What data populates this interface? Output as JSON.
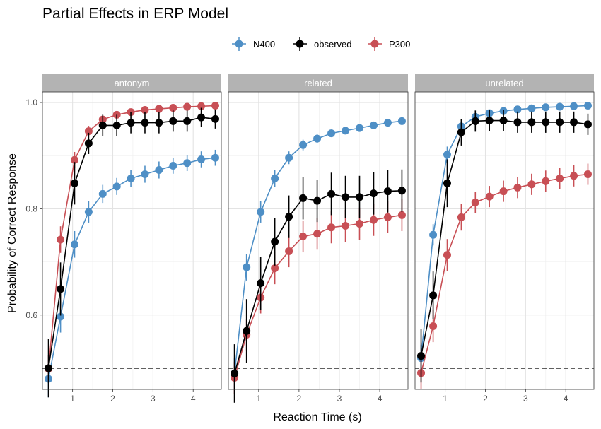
{
  "chart_data": {
    "type": "line",
    "title": "Partial Effects in ERP Model",
    "xlabel": "Reaction Time (s)",
    "ylabel": "Probability of Correct Response",
    "xlim": [
      0.25,
      4.7
    ],
    "ylim": [
      0.46,
      1.02
    ],
    "xticks": [
      "1",
      "2",
      "3",
      "4"
    ],
    "yticks": [
      "0.6",
      "0.8",
      "1.0"
    ],
    "reference_line": 0.5,
    "legend_position": "top",
    "colors": {
      "N400": "#4e8fc6",
      "observed": "#000000",
      "P300": "#c84f55"
    },
    "x": [
      0.4,
      0.7,
      1.05,
      1.4,
      1.75,
      2.1,
      2.45,
      2.8,
      3.15,
      3.5,
      3.85,
      4.2,
      4.55
    ],
    "panels": [
      {
        "name": "antonym",
        "series": [
          {
            "name": "N400",
            "values": [
              0.48,
              0.597,
              0.733,
              0.794,
              0.828,
              0.842,
              0.857,
              0.865,
              0.873,
              0.881,
              0.886,
              0.893,
              0.896
            ],
            "errors": [
              0.035,
              0.03,
              0.025,
              0.02,
              0.017,
              0.016,
              0.016,
              0.016,
              0.016,
              0.015,
              0.015,
              0.015,
              0.015
            ]
          },
          {
            "name": "observed",
            "values": [
              0.5,
              0.649,
              0.848,
              0.923,
              0.957,
              0.957,
              0.962,
              0.962,
              0.962,
              0.965,
              0.965,
              0.972,
              0.969
            ],
            "errors": [
              0.055,
              0.05,
              0.04,
              0.02,
              0.02,
              0.02,
              0.02,
              0.02,
              0.02,
              0.02,
              0.02,
              0.018,
              0.018
            ]
          },
          {
            "name": "P300",
            "values": [
              0.499,
              0.742,
              0.892,
              0.946,
              0.968,
              0.977,
              0.982,
              0.986,
              0.988,
              0.99,
              0.992,
              0.993,
              0.994
            ],
            "errors": [
              0.025,
              0.025,
              0.015,
              0.01,
              0.008,
              0.006,
              0.005,
              0.004,
              0.004,
              0.004,
              0.004,
              0.003,
              0.003
            ]
          }
        ]
      },
      {
        "name": "related",
        "series": [
          {
            "name": "N400",
            "values": [
              0.49,
              0.69,
              0.794,
              0.857,
              0.896,
              0.92,
              0.932,
              0.942,
              0.947,
              0.952,
              0.957,
              0.962,
              0.965
            ],
            "errors": [
              0.03,
              0.025,
              0.02,
              0.016,
              0.012,
              0.01,
              0.008,
              0.007,
              0.006,
              0.006,
              0.005,
              0.005,
              0.005
            ]
          },
          {
            "name": "observed",
            "values": [
              0.49,
              0.57,
              0.66,
              0.738,
              0.785,
              0.82,
              0.815,
              0.828,
              0.822,
              0.822,
              0.829,
              0.833,
              0.834
            ],
            "errors": [
              0.055,
              0.06,
              0.05,
              0.045,
              0.04,
              0.04,
              0.04,
              0.04,
              0.04,
              0.04,
              0.04,
              0.04,
              0.04
            ]
          },
          {
            "name": "P300",
            "values": [
              0.482,
              0.563,
              0.633,
              0.688,
              0.72,
              0.748,
              0.753,
              0.765,
              0.768,
              0.772,
              0.779,
              0.784,
              0.788
            ],
            "errors": [
              0.03,
              0.03,
              0.03,
              0.03,
              0.03,
              0.03,
              0.03,
              0.03,
              0.03,
              0.03,
              0.03,
              0.03,
              0.03
            ]
          }
        ]
      },
      {
        "name": "unrelated",
        "series": [
          {
            "name": "N400",
            "values": [
              0.519,
              0.751,
              0.902,
              0.955,
              0.973,
              0.98,
              0.984,
              0.987,
              0.989,
              0.991,
              0.992,
              0.993,
              0.994
            ],
            "errors": [
              0.025,
              0.02,
              0.015,
              0.008,
              0.005,
              0.004,
              0.003,
              0.003,
              0.003,
              0.003,
              0.003,
              0.003,
              0.003
            ]
          },
          {
            "name": "observed",
            "values": [
              0.523,
              0.637,
              0.848,
              0.944,
              0.965,
              0.966,
              0.966,
              0.963,
              0.963,
              0.963,
              0.963,
              0.963,
              0.959
            ],
            "errors": [
              0.05,
              0.045,
              0.045,
              0.025,
              0.02,
              0.02,
              0.02,
              0.02,
              0.02,
              0.02,
              0.02,
              0.02,
              0.02
            ]
          },
          {
            "name": "P300",
            "values": [
              0.491,
              0.579,
              0.713,
              0.784,
              0.812,
              0.823,
              0.833,
              0.84,
              0.846,
              0.852,
              0.857,
              0.862,
              0.865
            ],
            "errors": [
              0.03,
              0.03,
              0.03,
              0.025,
              0.02,
              0.02,
              0.02,
              0.02,
              0.02,
              0.02,
              0.02,
              0.02,
              0.02
            ]
          }
        ]
      }
    ]
  }
}
